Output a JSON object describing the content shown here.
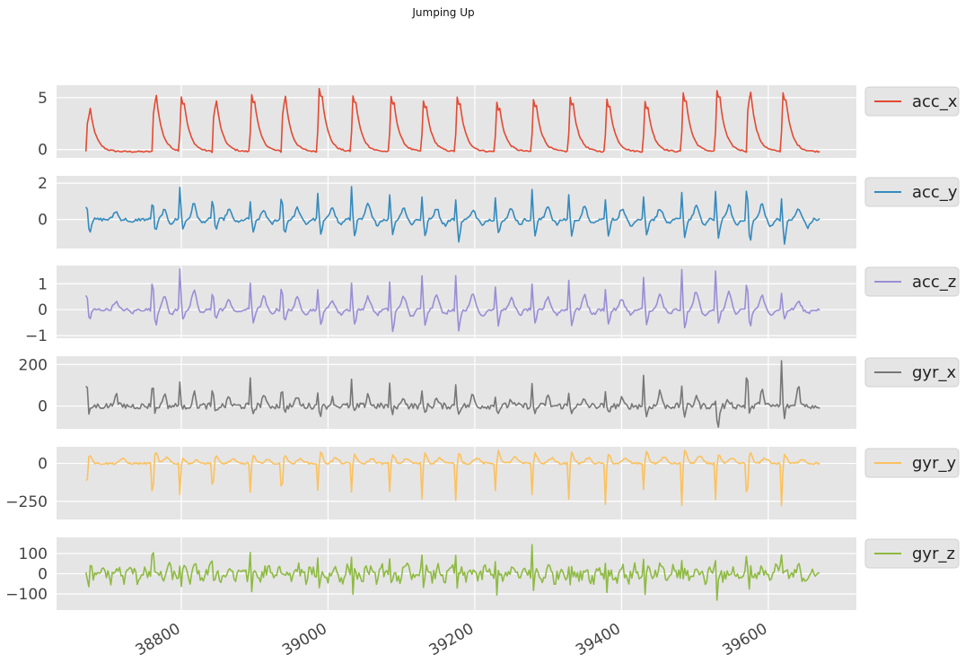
{
  "chart_data": {
    "type": "line",
    "title": "Jumping Up",
    "xlabel": "",
    "xlim": [
      38630,
      39720
    ],
    "xticks": [
      38800,
      39000,
      39200,
      39400,
      39600
    ],
    "x_start": 38670,
    "x_end": 39670,
    "cycle_starts": [
      38670,
      38760,
      38797,
      38842,
      38893,
      38936,
      38985,
      39031,
      39083,
      39127,
      39173,
      39227,
      39277,
      39327,
      39377,
      39429,
      39481,
      39527,
      39570,
      39617,
      39670
    ],
    "grid": true,
    "legend_placement": "right of each panel",
    "panels": [
      {
        "series": "acc_x",
        "color": "#E24A33",
        "ylim": [
          -0.8,
          6.2
        ],
        "yticks": [
          0,
          5
        ],
        "ytick_labels": [
          "0",
          "5"
        ],
        "peaks": [
          3.9,
          5.2,
          5.1,
          4.7,
          5.3,
          5.1,
          5.9,
          5.2,
          5.1,
          4.7,
          5.0,
          4.5,
          4.8,
          5.0,
          4.8,
          4.6,
          5.4,
          5.7,
          5.6,
          5.5
        ],
        "baseline": -0.2
      },
      {
        "series": "acc_y",
        "color": "#348ABD",
        "ylim": [
          -1.6,
          2.4
        ],
        "yticks": [
          0,
          2
        ],
        "ytick_labels": [
          "0",
          "2"
        ],
        "peaks": [
          1.0,
          1.1,
          1.9,
          1.2,
          1.1,
          1.4,
          1.6,
          1.9,
          1.5,
          1.4,
          1.2,
          1.3,
          1.7,
          1.5,
          1.3,
          1.4,
          1.7,
          1.7,
          1.9,
          1.3
        ],
        "troughs": [
          -0.7,
          -0.7,
          -0.6,
          -0.6,
          -0.8,
          -0.8,
          -0.9,
          -0.9,
          -0.8,
          -1.0,
          -1.2,
          -0.8,
          -0.9,
          -0.9,
          -1.0,
          -0.9,
          -1.0,
          -1.0,
          -1.3,
          -1.4
        ]
      },
      {
        "series": "acc_z",
        "color": "#988ED5",
        "ylim": [
          -1.1,
          1.7
        ],
        "yticks": [
          1,
          0,
          -1
        ],
        "ytick_labels": [
          "1",
          "0",
          "−1"
        ],
        "peaks": [
          0.7,
          1.2,
          1.6,
          0.8,
          1.1,
          1.0,
          0.8,
          1.1,
          1.2,
          1.4,
          1.4,
          1.0,
          1.1,
          1.2,
          0.9,
          1.3,
          1.6,
          1.6,
          1.2,
          0.7
        ],
        "troughs": [
          -0.4,
          -0.6,
          -0.4,
          -0.4,
          -0.5,
          -0.5,
          -0.6,
          -0.6,
          -0.9,
          -0.6,
          -0.8,
          -0.6,
          -0.6,
          -0.6,
          -0.6,
          -0.6,
          -0.8,
          -0.6,
          -0.7,
          -0.4
        ]
      },
      {
        "series": "gyr_x",
        "color": "#777777",
        "ylim": [
          -110,
          240
        ],
        "yticks": [
          0,
          200
        ],
        "ytick_labels": [
          "0",
          "200"
        ],
        "peaks": [
          140,
          140,
          140,
          100,
          135,
          110,
          80,
          135,
          110,
          80,
          125,
          70,
          110,
          70,
          70,
          175,
          120,
          70,
          200,
          235
        ],
        "troughs": [
          -40,
          -30,
          -30,
          -40,
          -40,
          -30,
          -40,
          -40,
          -40,
          -30,
          -40,
          -40,
          -40,
          -30,
          -40,
          -60,
          -50,
          -110,
          -40,
          -60
        ]
      },
      {
        "series": "gyr_y",
        "color": "#FBC15E",
        "ylim": [
          -370,
          110
        ],
        "yticks": [
          0,
          -250
        ],
        "ytick_labels": [
          "0",
          "−250"
        ],
        "peaks": [
          60,
          70,
          40,
          50,
          50,
          60,
          70,
          60,
          60,
          70,
          70,
          80,
          70,
          70,
          60,
          80,
          90,
          60,
          70,
          60
        ],
        "troughs": [
          -190,
          -270,
          -220,
          -200,
          -210,
          -240,
          -210,
          -215,
          -210,
          -260,
          -280,
          -210,
          -230,
          -260,
          -300,
          -200,
          -320,
          -260,
          -290,
          -310
        ]
      },
      {
        "series": "gyr_z",
        "color": "#8EBA42",
        "ylim": [
          -180,
          180
        ],
        "yticks": [
          100,
          0,
          -100
        ],
        "ytick_labels": [
          "100",
          "0",
          "−100"
        ],
        "peaks": [
          60,
          150,
          70,
          60,
          100,
          60,
          80,
          70,
          60,
          70,
          80,
          70,
          140,
          60,
          70,
          70,
          60,
          90,
          110,
          110
        ],
        "troughs": [
          -140,
          -60,
          -80,
          -90,
          -120,
          -80,
          -110,
          -110,
          -100,
          -70,
          -110,
          -110,
          -120,
          -80,
          -100,
          -110,
          -60,
          -140,
          -100,
          -60
        ]
      }
    ]
  }
}
